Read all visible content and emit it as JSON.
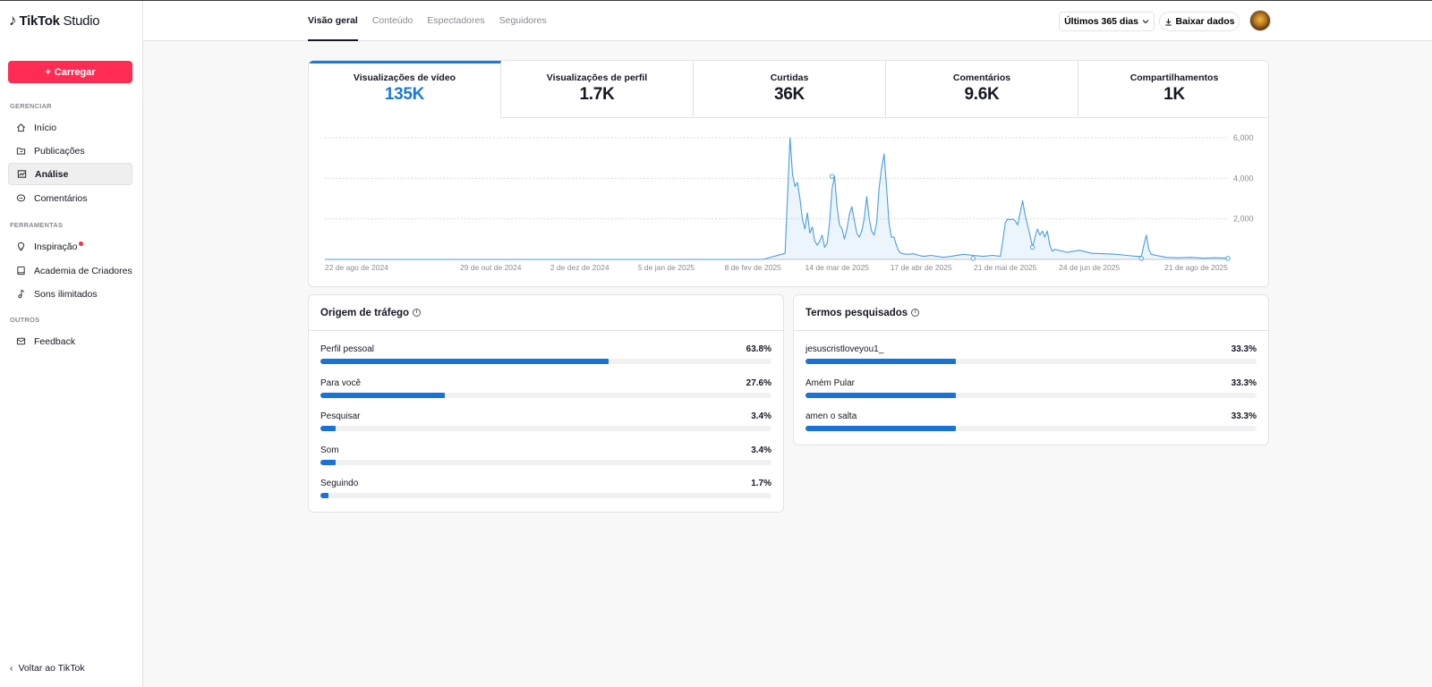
{
  "app": {
    "note_glyph": "♪",
    "brand": "TikTok",
    "studio": "Studio"
  },
  "sidebar": {
    "upload_label": "Carregar",
    "sections": {
      "manage": "GERENCIAR",
      "tools": "FERRAMENTAS",
      "others": "OUTROS"
    },
    "items": [
      {
        "label": "Início",
        "icon": "home-icon"
      },
      {
        "label": "Publicações",
        "icon": "folder-icon"
      },
      {
        "label": "Análise",
        "icon": "chart-icon",
        "active": true
      },
      {
        "label": "Comentários",
        "icon": "comment-icon"
      },
      {
        "label": "Inspiração",
        "icon": "bulb-icon",
        "badge": "red-dot"
      },
      {
        "label": "Academia de Criadores",
        "icon": "book-icon"
      },
      {
        "label": "Sons ilimitados",
        "icon": "music-icon"
      },
      {
        "label": "Feedback",
        "icon": "mail-icon"
      }
    ],
    "back_label": "Voltar ao TikTok"
  },
  "header": {
    "tabs": [
      "Visão geral",
      "Conteúdo",
      "Espectadores",
      "Seguidores"
    ],
    "range_label": "Últimos 365 dias",
    "download_label": "Baixar dados"
  },
  "metrics": [
    {
      "label": "Visualizações de vídeo",
      "value": "135K"
    },
    {
      "label": "Visualizações de perfil",
      "value": "1.7K"
    },
    {
      "label": "Curtidas",
      "value": "36K"
    },
    {
      "label": "Comentários",
      "value": "9.6K"
    },
    {
      "label": "Compartilhamentos",
      "value": "1K"
    }
  ],
  "chart_data": {
    "type": "area",
    "color": "#4a9ee0",
    "x_tick_labels": [
      "22 de ago de 2024",
      "29 de out de 2024",
      "2 de dez de 2024",
      "5 de jan de 2025",
      "8 de fev de 2025",
      "14 de mar de 2025",
      "17 de abr de 2025",
      "21 de mai de 2025",
      "24 de jun de 2025",
      "21 de ago de 2025"
    ],
    "y_tick_labels": [
      "6,000",
      "4,000",
      "2,000"
    ],
    "ylim": [
      0,
      6000
    ],
    "grid": true,
    "series": [
      {
        "values": [
          [
            0,
            0
          ],
          [
            177,
            0
          ],
          [
            186,
            300
          ],
          [
            188,
            6000
          ],
          [
            189,
            4200
          ],
          [
            190,
            3600
          ],
          [
            191,
            3800
          ],
          [
            192,
            3000
          ],
          [
            193,
            2000
          ],
          [
            194,
            1500
          ],
          [
            195,
            2300
          ],
          [
            196,
            1300
          ],
          [
            197,
            1600
          ],
          [
            198,
            900
          ],
          [
            199,
            700
          ],
          [
            200,
            900
          ],
          [
            201,
            1200
          ],
          [
            202,
            600
          ],
          [
            203,
            800
          ],
          [
            204,
            1800
          ],
          [
            205,
            3500
          ],
          [
            206,
            4100
          ],
          [
            207,
            2600
          ],
          [
            208,
            1700
          ],
          [
            209,
            1500
          ],
          [
            210,
            1000
          ],
          [
            211,
            1500
          ],
          [
            212,
            2200
          ],
          [
            213,
            2600
          ],
          [
            214,
            1900
          ],
          [
            215,
            1300
          ],
          [
            216,
            1100
          ],
          [
            217,
            1400
          ],
          [
            218,
            2000
          ],
          [
            219,
            3100
          ],
          [
            220,
            2000
          ],
          [
            221,
            1400
          ],
          [
            222,
            1200
          ],
          [
            223,
            1800
          ],
          [
            224,
            3500
          ],
          [
            225,
            4500
          ],
          [
            226,
            5200
          ],
          [
            227,
            3600
          ],
          [
            228,
            1800
          ],
          [
            229,
            1100
          ],
          [
            230,
            1100
          ],
          [
            231,
            700
          ],
          [
            232,
            400
          ],
          [
            233,
            300
          ],
          [
            235,
            250
          ],
          [
            238,
            280
          ],
          [
            240,
            200
          ],
          [
            242,
            150
          ],
          [
            245,
            200
          ],
          [
            250,
            100
          ],
          [
            253,
            150
          ],
          [
            258,
            250
          ],
          [
            262,
            200
          ],
          [
            266,
            150
          ],
          [
            270,
            200
          ],
          [
            273,
            150
          ],
          [
            274,
            900
          ],
          [
            275,
            1800
          ],
          [
            276,
            2000
          ],
          [
            277,
            1950
          ],
          [
            278,
            2000
          ],
          [
            279,
            1900
          ],
          [
            280,
            1700
          ],
          [
            281,
            2300
          ],
          [
            282,
            2900
          ],
          [
            283,
            2200
          ],
          [
            284,
            1700
          ],
          [
            285,
            1200
          ],
          [
            286,
            600
          ],
          [
            287,
            1100
          ],
          [
            288,
            1500
          ],
          [
            289,
            1200
          ],
          [
            290,
            1400
          ],
          [
            291,
            1100
          ],
          [
            292,
            1400
          ],
          [
            293,
            700
          ],
          [
            294,
            400
          ],
          [
            295,
            500
          ],
          [
            300,
            350
          ],
          [
            305,
            450
          ],
          [
            310,
            300
          ],
          [
            315,
            280
          ],
          [
            320,
            250
          ],
          [
            324,
            200
          ],
          [
            328,
            150
          ],
          [
            330,
            150
          ],
          [
            331,
            700
          ],
          [
            332,
            1200
          ],
          [
            333,
            500
          ],
          [
            334,
            250
          ],
          [
            336,
            200
          ],
          [
            340,
            100
          ],
          [
            345,
            80
          ],
          [
            350,
            100
          ],
          [
            355,
            60
          ],
          [
            360,
            80
          ],
          [
            365,
            60
          ]
        ],
        "markers": [
          [
            205,
            4100
          ],
          [
            262,
            50
          ],
          [
            286,
            600
          ],
          [
            330,
            50
          ],
          [
            365,
            50
          ]
        ]
      }
    ]
  },
  "traffic": {
    "title": "Origem de tráfego",
    "rows": [
      {
        "label": "Perfil pessoal",
        "value": "63.8%",
        "fraction": 0.638
      },
      {
        "label": "Para você",
        "value": "27.6%",
        "fraction": 0.276
      },
      {
        "label": "Pesquisar",
        "value": "3.4%",
        "fraction": 0.034
      },
      {
        "label": "Som",
        "value": "3.4%",
        "fraction": 0.034
      },
      {
        "label": "Seguindo",
        "value": "1.7%",
        "fraction": 0.017
      }
    ]
  },
  "search_terms": {
    "title": "Termos pesquisados",
    "rows": [
      {
        "label": "jesuscristloveyou1_",
        "value": "33.3%",
        "fraction": 0.333
      },
      {
        "label": "Amém Pular",
        "value": "33.3%",
        "fraction": 0.333
      },
      {
        "label": "amen o salta",
        "value": "33.3%",
        "fraction": 0.333
      }
    ]
  },
  "colors": {
    "accent": "#fe2c55",
    "blue": "#1a7ad8",
    "bar": "#1a72d6"
  }
}
